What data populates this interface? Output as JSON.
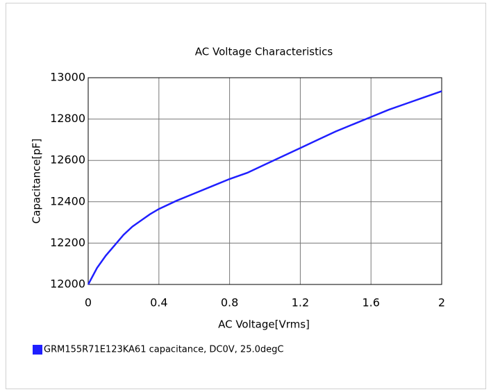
{
  "chart_data": {
    "type": "line",
    "title": "AC Voltage Characteristics",
    "xlabel": "AC Voltage[Vrms]",
    "ylabel": "Capacitance[pF]",
    "x": [
      0,
      0.05,
      0.1,
      0.15,
      0.2,
      0.25,
      0.3,
      0.35,
      0.4,
      0.5,
      0.6,
      0.7,
      0.8,
      0.9,
      1.0,
      1.1,
      1.2,
      1.3,
      1.4,
      1.5,
      1.6,
      1.7,
      1.8,
      1.9,
      2.0
    ],
    "series": [
      {
        "name": "GRM155R71E123KA61 capacitance, DC0V, 25.0degC",
        "color": "#1f1fff",
        "values": [
          12000,
          12080,
          12140,
          12190,
          12240,
          12280,
          12310,
          12340,
          12365,
          12405,
          12440,
          12475,
          12510,
          12540,
          12580,
          12620,
          12660,
          12700,
          12740,
          12775,
          12810,
          12845,
          12875,
          12905,
          12935
        ]
      }
    ],
    "xlim": [
      0,
      2
    ],
    "xticks": [
      0,
      0.4,
      0.8,
      1.2,
      1.6,
      2
    ],
    "ylim": [
      12000,
      13000
    ],
    "yticks": [
      12000,
      12200,
      12400,
      12600,
      12800,
      13000
    ],
    "grid": true,
    "legend": "bottom-left"
  }
}
